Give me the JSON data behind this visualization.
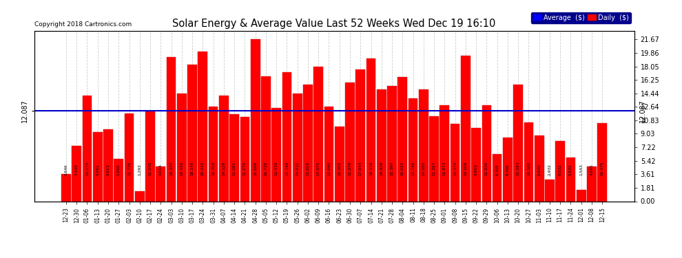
{
  "title": "Solar Energy & Average Value Last 52 Weeks Wed Dec 19 16:10",
  "copyright": "Copyright 2018 Cartronics.com",
  "average_value": 12.087,
  "categories": [
    "12-23",
    "12-30",
    "01-06",
    "01-13",
    "01-20",
    "01-27",
    "02-03",
    "02-10",
    "02-17",
    "02-24",
    "03-03",
    "03-10",
    "03-17",
    "03-24",
    "03-31",
    "04-07",
    "04-14",
    "04-21",
    "04-28",
    "05-05",
    "05-12",
    "05-19",
    "05-26",
    "06-02",
    "06-09",
    "06-16",
    "06-23",
    "06-30",
    "07-07",
    "07-14",
    "07-21",
    "07-28",
    "08-04",
    "08-11",
    "08-18",
    "08-25",
    "09-01",
    "09-08",
    "09-15",
    "09-22",
    "09-29",
    "10-06",
    "10-13",
    "10-20",
    "10-27",
    "11-03",
    "11-10",
    "11-17",
    "11-24",
    "12-01",
    "12-08",
    "12-15"
  ],
  "values": [
    3.646,
    7.449,
    14.174,
    9.261,
    9.613,
    5.66,
    11.736,
    1.293,
    12.042,
    4.614,
    19.337,
    14.452,
    18.245,
    20.042,
    12.703,
    14.128,
    11.681,
    11.27,
    21.666,
    16.728,
    12.439,
    17.248,
    14.432,
    15.616,
    17.971,
    12.64,
    10.003,
    15.879,
    17.644,
    19.11,
    14.929,
    15.397,
    16.633,
    13.748,
    14.95,
    11.367,
    12.873,
    10.379,
    19.509,
    9.803,
    12.836,
    6.305,
    8.496,
    15.584,
    10.505,
    8.83,
    2.932,
    8.032,
    5.831,
    1.543,
    4.645,
    10.475
  ],
  "bar_color": "#ff0000",
  "bar_edge_color": "#cc0000",
  "background_color": "#ffffff",
  "grid_color": "#999999",
  "average_line_color": "#000000",
  "blue_line_color": "#0000cc",
  "yticks_right": [
    0.0,
    1.81,
    3.61,
    5.42,
    7.22,
    9.03,
    10.83,
    12.64,
    14.44,
    16.25,
    18.05,
    19.86,
    21.67
  ],
  "ytick_labels_right": [
    "0.00",
    "1.81",
    "3.61",
    "5.42",
    "7.22",
    "9.03",
    "10.83",
    "12.64",
    "14.44",
    "16.25",
    "18.05",
    "19.86",
    "21.67"
  ],
  "ylim": [
    0,
    22.8
  ],
  "legend_avg_label": "Average  ($)",
  "legend_daily_label": "Daily  ($)"
}
